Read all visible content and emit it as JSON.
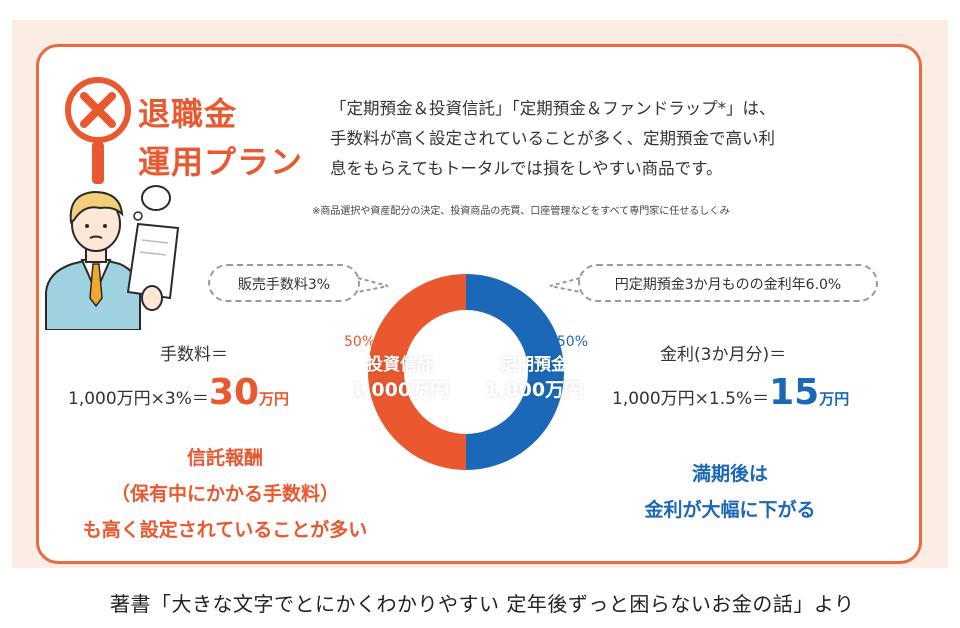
{
  "plan": {
    "title_line1": "退職金",
    "title_line2": "運用プラン"
  },
  "intro": {
    "line1": "「定期預金＆投資信託」「定期預金＆ファンドラップ*」は、",
    "line2": "手数料が高く設定されていることが多く、定期預金で高い利",
    "line3": "息をもらえてもトータルでは損をしやすい商品です。"
  },
  "footnote": "※商品選択や資産配分の決定、投資商品の売買、口座管理などをすべて専門家に任せるしくみ",
  "bubbles": {
    "left": "販売手数料3%",
    "right": "円定期預金3か月ものの金利年6.0%"
  },
  "left_calc": {
    "label": "手数料＝",
    "formula": "1,000万円×3%＝",
    "result": "30",
    "unit": "万円"
  },
  "right_calc": {
    "label": "金利(3か月分)＝",
    "formula": "1,000万円×1.5%＝",
    "result": "15",
    "unit": "万円"
  },
  "notes": {
    "left_line1": "信託報酬",
    "left_line2": "（保有中にかかる手数料）",
    "left_line3": "も高く設定されていることが多い",
    "right_line1": "満期後は",
    "right_line2": "金利が大幅に下がる"
  },
  "caption": "著書「大きな文字でとにかくわかりやすい 定年後ずっと困らないお金の話」より",
  "colors": {
    "accent_red": "#e9582f",
    "accent_blue": "#1b68b8",
    "border": "#ea6a3e"
  },
  "chart_data": {
    "type": "pie",
    "categories": [
      "投資信託",
      "定期預金"
    ],
    "values": [
      50,
      50
    ],
    "percent_labels": [
      "50%",
      "50%"
    ],
    "amount_labels": [
      "1,000万円",
      "1,000万円"
    ],
    "colors": [
      "#e9582f",
      "#1b68b8"
    ]
  }
}
